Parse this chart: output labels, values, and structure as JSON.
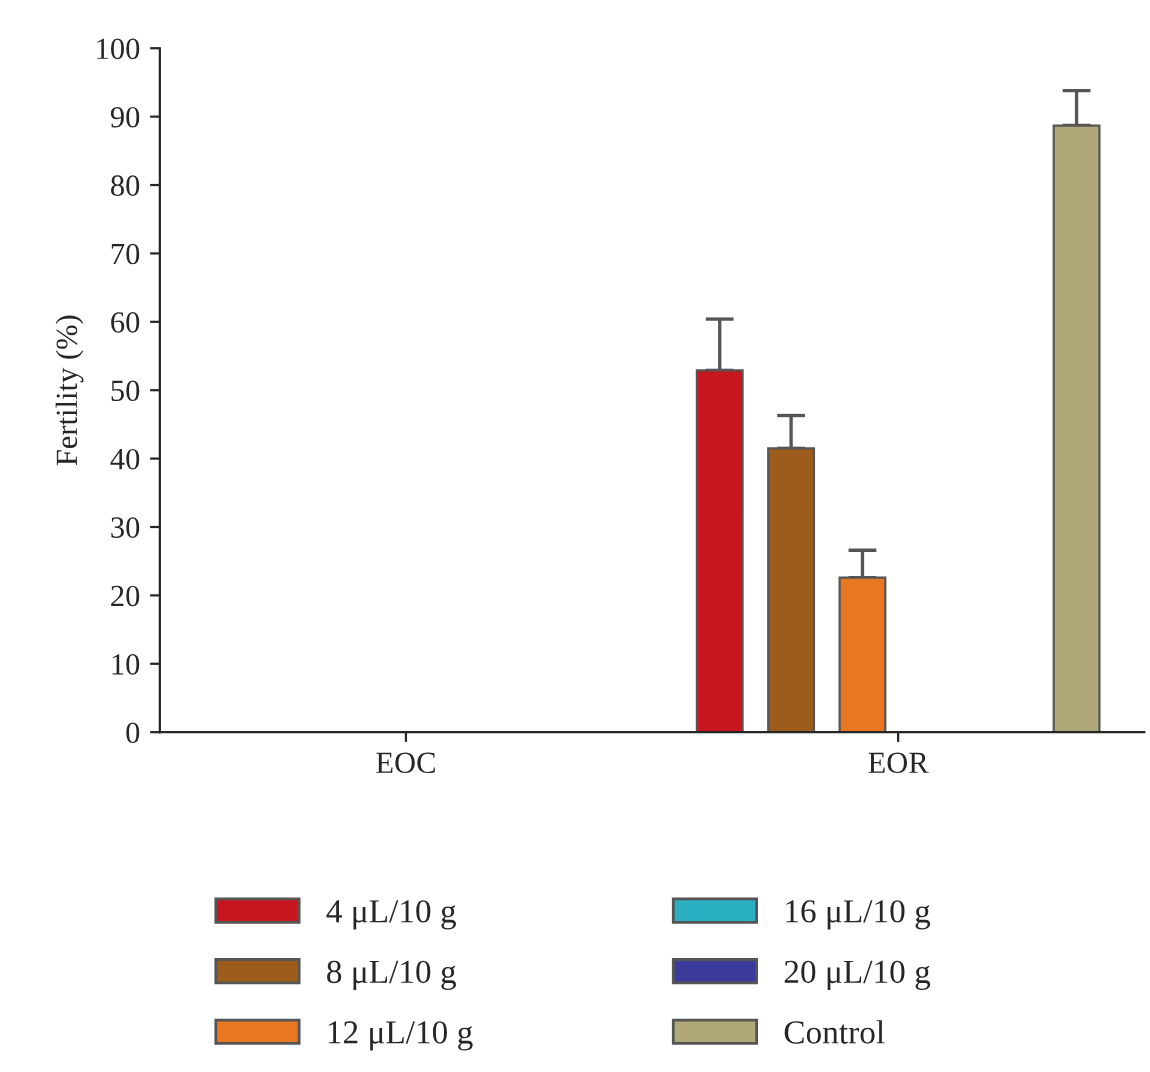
{
  "chart_data": {
    "type": "bar",
    "ylabel": "Fertility (%)",
    "categories": [
      "EOC",
      "EOR"
    ],
    "series": [
      {
        "name": "4 μL/10 g",
        "color": "#c8161e",
        "values": [
          null,
          52.9
        ],
        "errors": [
          null,
          [
            52.9,
            60.4
          ]
        ]
      },
      {
        "name": "8 μL/10 g",
        "color": "#9c5c1c",
        "values": [
          null,
          41.5
        ],
        "errors": [
          null,
          [
            41.5,
            46.3
          ]
        ]
      },
      {
        "name": "12 μL/10 g",
        "color": "#e87722",
        "values": [
          null,
          22.6
        ],
        "errors": [
          null,
          [
            22.6,
            26.6
          ]
        ]
      },
      {
        "name": "16 μL/10 g",
        "color": "#2ab0c0",
        "values": [
          null,
          null
        ]
      },
      {
        "name": "20 μL/10 g",
        "color": "#3b3b9c",
        "values": [
          null,
          null
        ]
      },
      {
        "name": "Control",
        "color": "#b0a878",
        "values": [
          null,
          88.7
        ],
        "errors": [
          null,
          [
            88.7,
            93.8
          ]
        ]
      }
    ],
    "ylim": [
      0,
      100
    ],
    "yticks": [
      0,
      10,
      20,
      30,
      40,
      50,
      60,
      70,
      80,
      90,
      100
    ],
    "grid": false,
    "legend": "bottom"
  }
}
